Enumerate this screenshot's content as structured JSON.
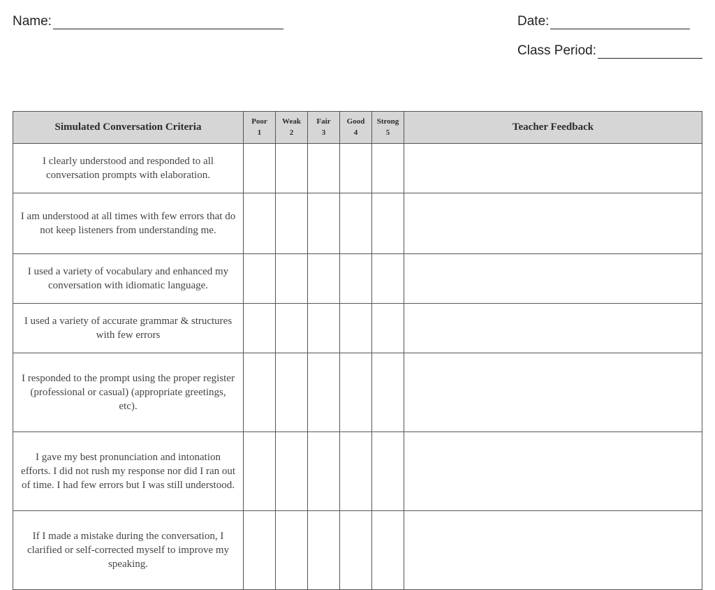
{
  "fields": {
    "name_label": "Name:",
    "date_label": "Date:",
    "class_period_label": "Class Period:"
  },
  "table": {
    "headers": {
      "criteria": "Simulated Conversation Criteria",
      "ratings": [
        {
          "label": "Poor",
          "num": "1"
        },
        {
          "label": "Weak",
          "num": "2"
        },
        {
          "label": "Fair",
          "num": "3"
        },
        {
          "label": "Good",
          "num": "4"
        },
        {
          "label": "Strong",
          "num": "5"
        }
      ],
      "feedback": "Teacher Feedback"
    },
    "rows": [
      "I clearly understood and responded to all conversation prompts with elaboration.",
      "I am understood at all times with few errors that do not keep listeners from understanding me.",
      "I used a variety of vocabulary and enhanced my conversation with idiomatic language.",
      "I used a variety of accurate grammar & structures with few errors",
      "I responded to the prompt using the proper register (professional or casual) (appropriate greetings, etc).",
      "I gave my best pronunciation and intonation efforts. I did not rush my response nor did I ran out of time. I had few errors but I was still understood.",
      "If I made a mistake during the conversation, I clarified or self-corrected myself to improve my speaking."
    ]
  },
  "colors": {
    "header_bg": "#d6d6d6",
    "border": "#555555",
    "text": "#333333"
  }
}
